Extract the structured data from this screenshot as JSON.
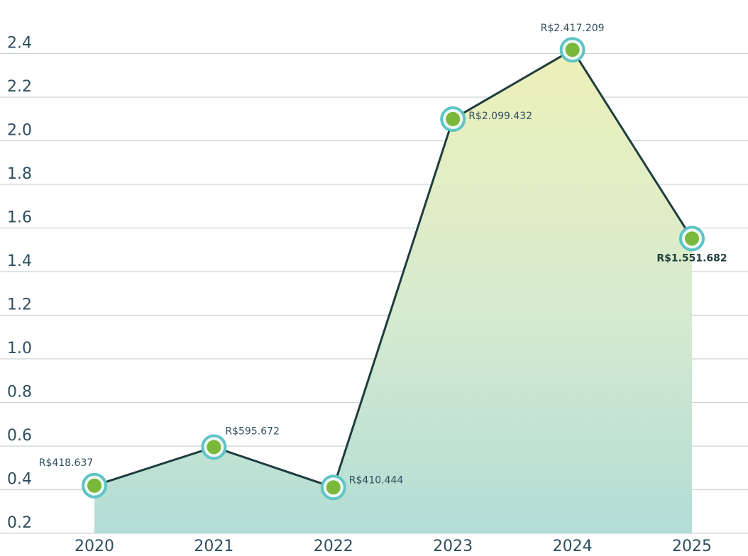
{
  "chart_data": {
    "type": "area",
    "categories": [
      "2020",
      "2021",
      "2022",
      "2023",
      "2024",
      "2025"
    ],
    "values": [
      0.418637,
      0.595672,
      0.410444,
      2.099432,
      2.417209,
      1.551682
    ],
    "value_labels": [
      "R$418.637",
      "R$595.672",
      "R$410.444",
      "R$2.099.432",
      "R$2.417.209",
      "R$1.551.682"
    ],
    "ylim": [
      0.2,
      2.6
    ],
    "yticks": [
      {
        "value": 0.2,
        "label": "0.2"
      },
      {
        "value": 0.4,
        "label": "0.4"
      },
      {
        "value": 0.6,
        "label": "0.6"
      },
      {
        "value": 0.8,
        "label": "0.8"
      },
      {
        "value": 1.0,
        "label": "1.0"
      },
      {
        "value": 1.2,
        "label": "1.2"
      },
      {
        "value": 1.4,
        "label": "1.4"
      },
      {
        "value": 1.6,
        "label": "1.6"
      },
      {
        "value": 1.8,
        "label": "1.8"
      },
      {
        "value": 2.0,
        "label": "2.0"
      },
      {
        "value": 2.2,
        "label": "2.2"
      },
      {
        "value": 2.4,
        "label": "2.4"
      }
    ],
    "grid": true,
    "color": "#1f3d3f",
    "marker_color": "#7ab83a",
    "ring_color": "#5ec4c4"
  }
}
